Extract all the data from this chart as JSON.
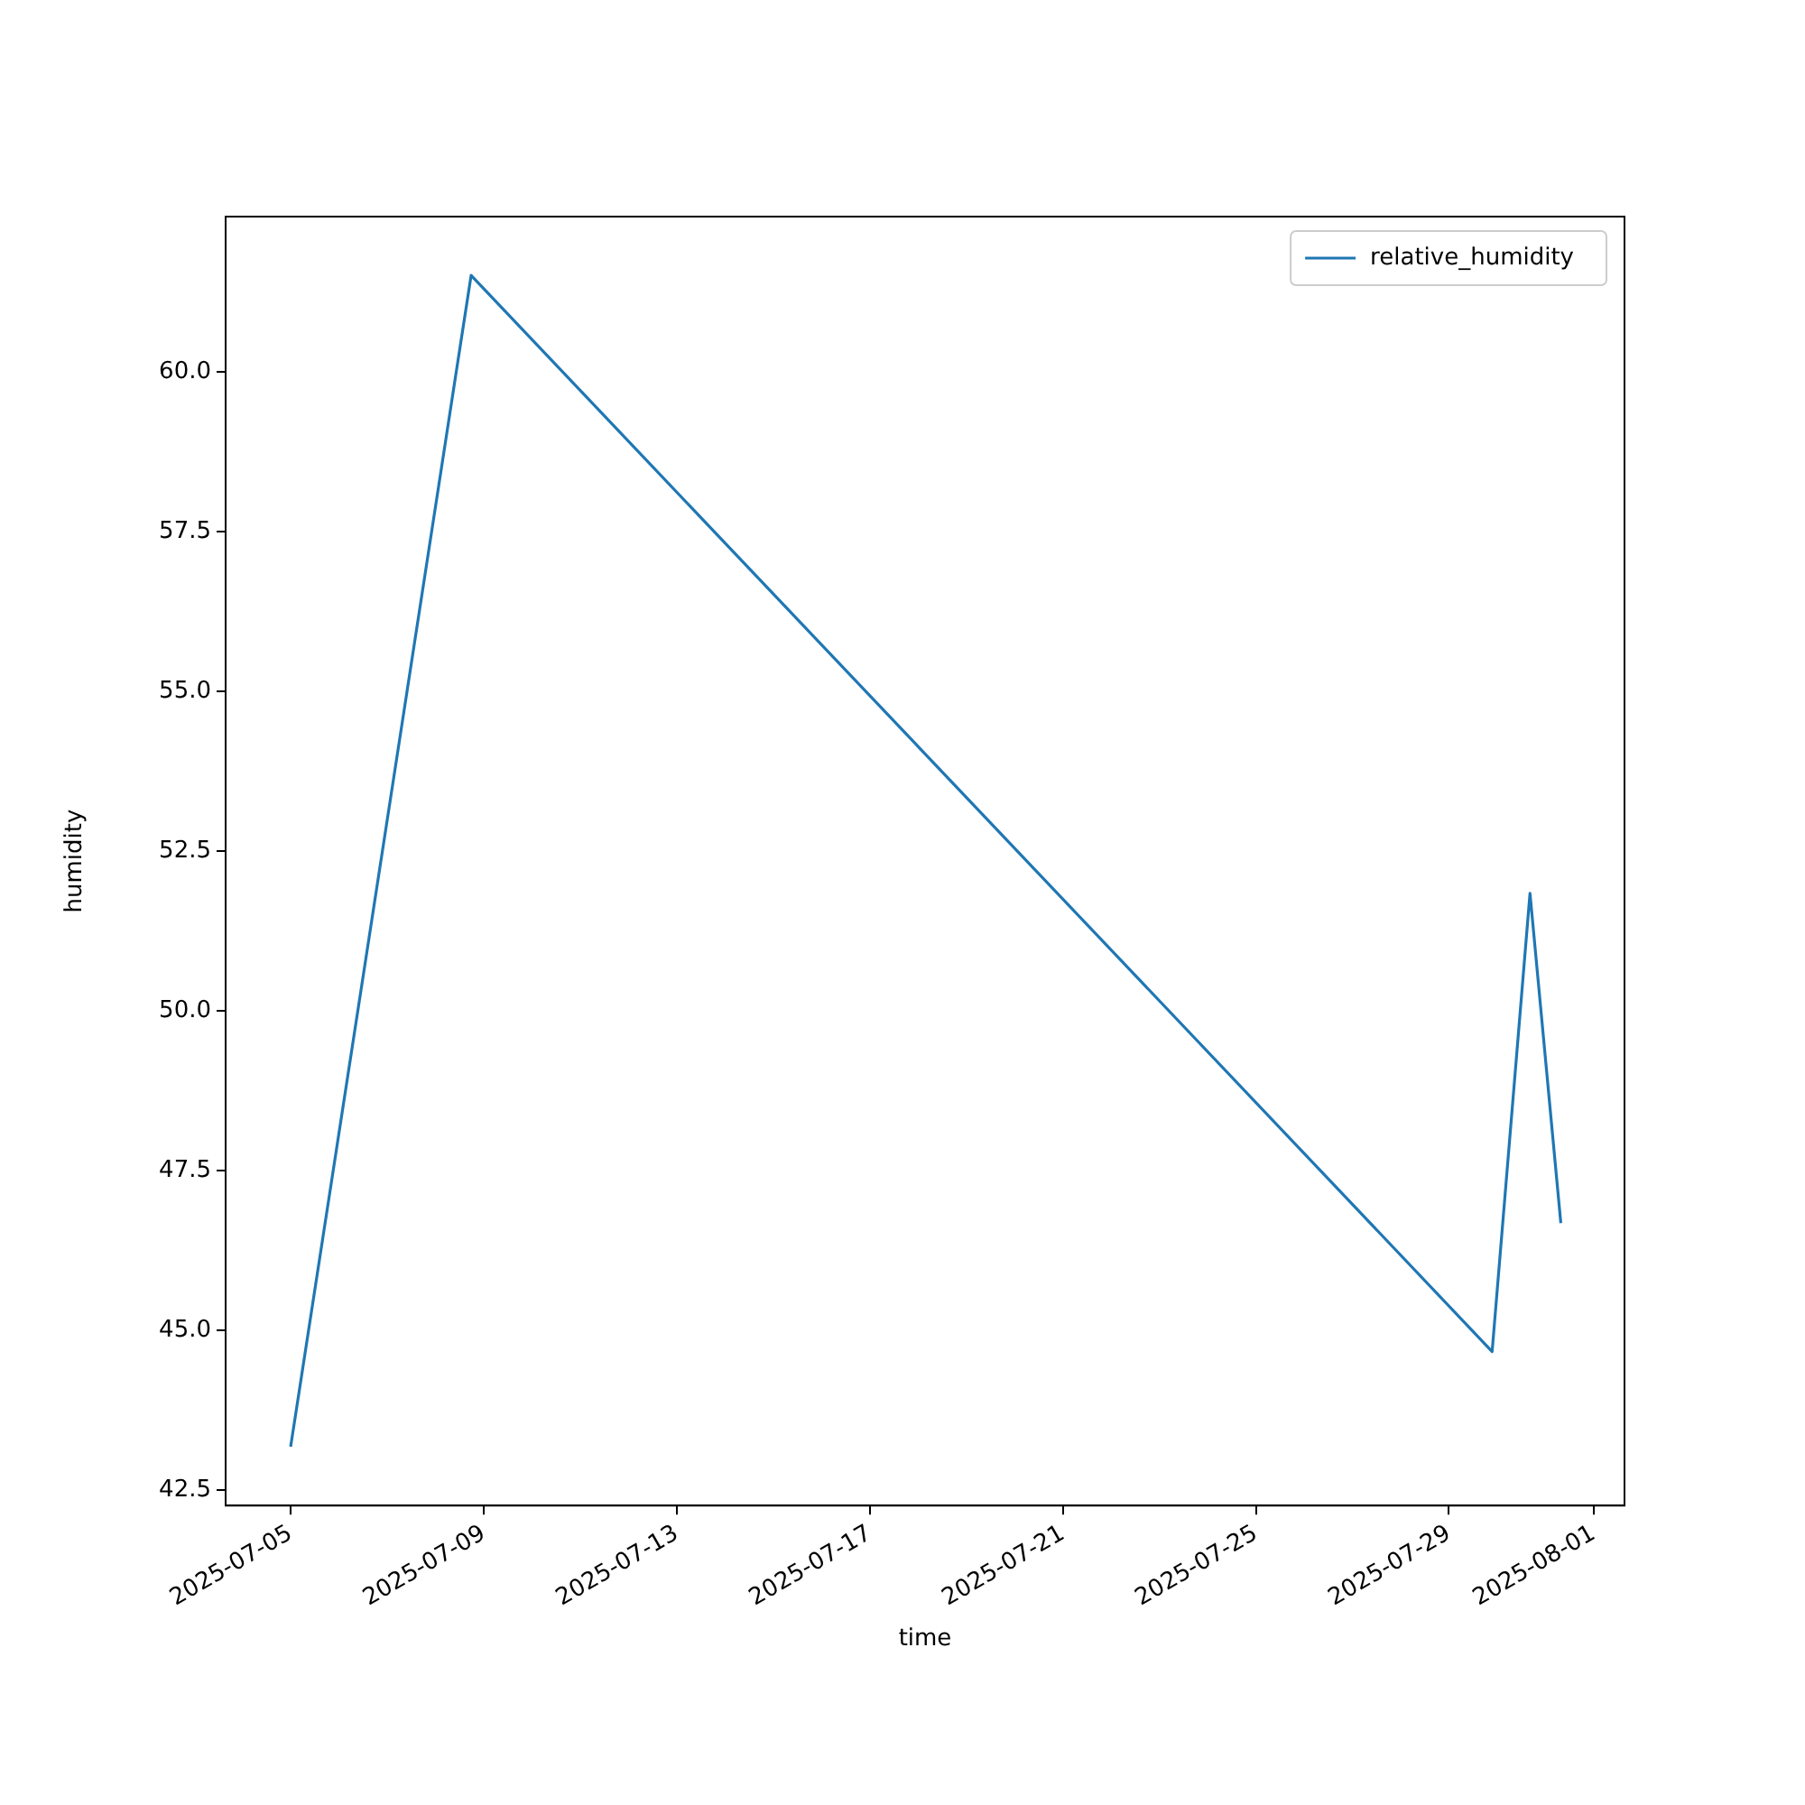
{
  "chart_data": {
    "type": "line",
    "xlabel": "time",
    "ylabel": "humidity",
    "x": [
      "2025-07-05T00:00",
      "2025-07-08T17:45",
      "2025-07-29T21:30",
      "2025-07-30T16:20",
      "2025-07-31T07:40"
    ],
    "series": [
      {
        "name": "relative_humidity",
        "color": "#1f77b4",
        "values": [
          43.18,
          61.51,
          44.67,
          51.84,
          46.68
        ]
      }
    ],
    "xlim": [
      "2025-07-03T15:40",
      "2025-08-01T15:20"
    ],
    "xticks": [
      "2025-07-05",
      "2025-07-09",
      "2025-07-13",
      "2025-07-17",
      "2025-07-21",
      "2025-07-25",
      "2025-07-29",
      "2025-08-01"
    ],
    "ylim": [
      42.26,
      62.43
    ],
    "yticks": [
      {
        "value": 42.5,
        "label": "42.5"
      },
      {
        "value": 45,
        "label": "45.0"
      },
      {
        "value": 47.5,
        "label": "47.5"
      },
      {
        "value": 50,
        "label": "50.0"
      },
      {
        "value": 52.5,
        "label": "52.5"
      },
      {
        "value": 55,
        "label": "55.0"
      },
      {
        "value": 57.5,
        "label": "57.5"
      },
      {
        "value": 60,
        "label": "60.0"
      }
    ],
    "grid": false,
    "legend": "top right",
    "marker": "none",
    "line_style": "solid"
  }
}
